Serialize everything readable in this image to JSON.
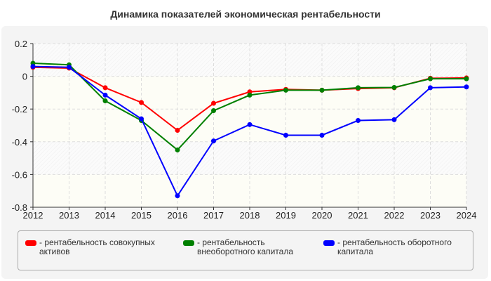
{
  "chart_data": {
    "type": "line",
    "title": "Динамика показателей экономическая рентабельности",
    "xlabel": "",
    "ylabel": "",
    "x": [
      2012,
      2013,
      2014,
      2015,
      2016,
      2017,
      2018,
      2019,
      2020,
      2021,
      2022,
      2023,
      2024
    ],
    "ylim": [
      -0.8,
      0.2
    ],
    "yticks": [
      0.2,
      0,
      -0.2,
      -0.4,
      -0.6,
      -0.8
    ],
    "grid": true,
    "legend": "bottom",
    "series": [
      {
        "name": "- рентабельность совокупных активов",
        "color": "#ff0000",
        "values": [
          0.055,
          0.05,
          -0.07,
          -0.16,
          -0.33,
          -0.165,
          -0.095,
          -0.08,
          -0.085,
          -0.075,
          -0.07,
          -0.012,
          -0.01
        ]
      },
      {
        "name": "- рентабельность внеоборотного капитала",
        "color": "#008000",
        "values": [
          0.08,
          0.07,
          -0.15,
          -0.27,
          -0.45,
          -0.21,
          -0.115,
          -0.085,
          -0.085,
          -0.07,
          -0.068,
          -0.015,
          -0.015
        ]
      },
      {
        "name": "- рентабельность оборотного капитала",
        "color": "#0000ff",
        "values": [
          0.06,
          0.055,
          -0.115,
          -0.26,
          -0.73,
          -0.395,
          -0.295,
          -0.36,
          -0.36,
          -0.27,
          -0.265,
          -0.07,
          -0.065
        ]
      }
    ]
  }
}
